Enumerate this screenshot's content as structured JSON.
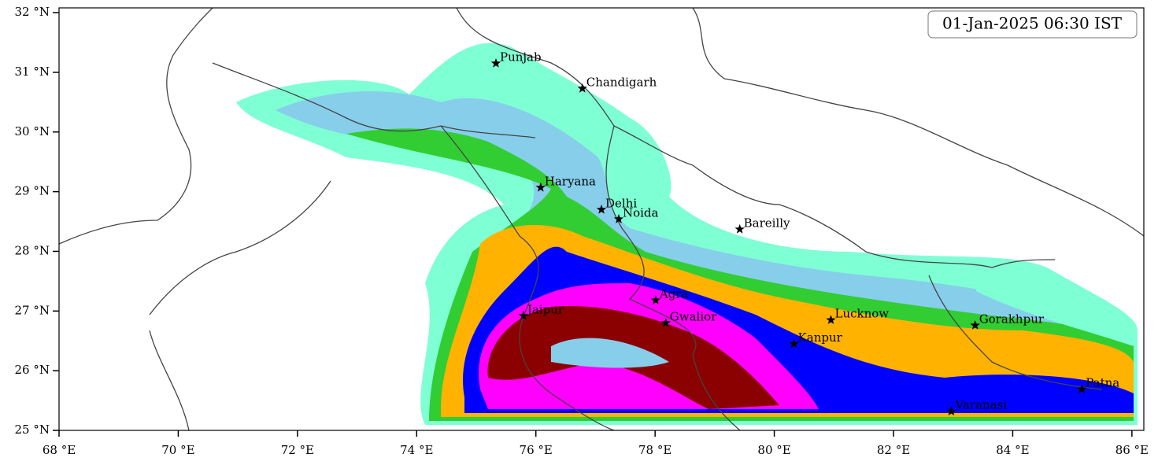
{
  "map": {
    "title": "01-Jan-2025 06:30 IST",
    "xlim": [
      68,
      86.2
    ],
    "ylim": [
      25,
      32.08
    ],
    "xticks": [
      {
        "value": 68,
        "label": "68 °E"
      },
      {
        "value": 70,
        "label": "70 °E"
      },
      {
        "value": 72,
        "label": "72 °E"
      },
      {
        "value": 74,
        "label": "74 °E"
      },
      {
        "value": 76,
        "label": "76 °E"
      },
      {
        "value": 78,
        "label": "78 °E"
      },
      {
        "value": 80,
        "label": "80 °E"
      },
      {
        "value": 82,
        "label": "82 °E"
      },
      {
        "value": 84,
        "label": "84 °E"
      },
      {
        "value": 86,
        "label": "86 °E"
      }
    ],
    "yticks": [
      {
        "value": 25,
        "label": "25 °N"
      },
      {
        "value": 26,
        "label": "26 °N"
      },
      {
        "value": 27,
        "label": "27 °N"
      },
      {
        "value": 28,
        "label": "28 °N"
      },
      {
        "value": 29,
        "label": "29 °N"
      },
      {
        "value": 30,
        "label": "30 °N"
      },
      {
        "value": 31,
        "label": "31 °N"
      },
      {
        "value": 32,
        "label": "32 °N"
      }
    ],
    "cities": [
      {
        "name": "Punjab",
        "lon": 75.33,
        "lat": 31.15
      },
      {
        "name": "Chandigarh",
        "lon": 76.78,
        "lat": 30.73
      },
      {
        "name": "Haryana",
        "lon": 76.08,
        "lat": 29.07
      },
      {
        "name": "Delhi",
        "lon": 77.1,
        "lat": 28.7
      },
      {
        "name": "Noida",
        "lon": 77.39,
        "lat": 28.54
      },
      {
        "name": "Bareilly",
        "lon": 79.42,
        "lat": 28.37
      },
      {
        "name": "Agra",
        "lon": 78.01,
        "lat": 27.18
      },
      {
        "name": "Jaipur",
        "lon": 75.79,
        "lat": 26.92
      },
      {
        "name": "Gwalior",
        "lon": 78.18,
        "lat": 26.8
      },
      {
        "name": "Lucknow",
        "lon": 80.95,
        "lat": 26.85
      },
      {
        "name": "Kanpur",
        "lon": 80.33,
        "lat": 26.45
      },
      {
        "name": "Gorakhpur",
        "lon": 83.37,
        "lat": 26.76
      },
      {
        "name": "Varanasi",
        "lon": 82.97,
        "lat": 25.32
      },
      {
        "name": "Patna",
        "lon": 85.16,
        "lat": 25.69
      }
    ]
  }
}
